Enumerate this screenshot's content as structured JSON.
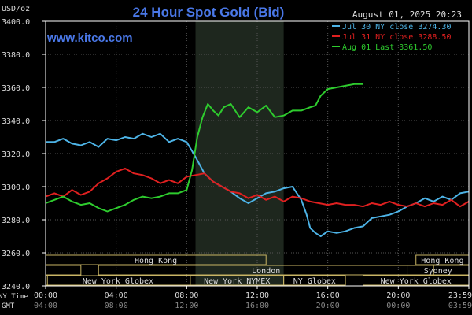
{
  "header": {
    "title": "24 Hour Spot Gold (Bid)",
    "units": "USD/oz",
    "datetime": "August 01, 2025 20:23",
    "site": "www.kitco.com"
  },
  "legend": [
    {
      "label": "Jul 30 NY close 3274.30",
      "color": "#4db3e6"
    },
    {
      "label": "Jul 31 NY close 3288.50",
      "color": "#e02020"
    },
    {
      "label": "Aug 01 Last 3361.50",
      "color": "#2ecc2e"
    }
  ],
  "axis": {
    "ny_time_label": "NY Time",
    "gmt_label": "GMT",
    "ny_ticks": [
      "00:00",
      "04:00",
      "08:00",
      "12:00",
      "16:00",
      "20:00",
      "23:59"
    ],
    "gmt_ticks": [
      "04:00",
      "08:00",
      "12:00",
      "16:00",
      "20:00",
      "00:00",
      "03:59"
    ],
    "y_ticks": [
      "3400.0",
      "3380.0",
      "3360.0",
      "3340.0",
      "3320.0",
      "3300.0",
      "3280.0",
      "3260.0",
      "3240.0"
    ]
  },
  "sessions": {
    "hong_kong": "Hong Kong",
    "london": "London",
    "ny_globex": "New York Globex",
    "ny_nymex": "New York NYMEX",
    "ny_globex_short": "NY Globex",
    "sydney": "Sydney"
  },
  "chart_data": {
    "type": "line",
    "title": "24 Hour Spot Gold (Bid)",
    "ylabel": "USD/oz",
    "xlabel": "NY Time",
    "xlim": [
      0,
      24
    ],
    "ylim": [
      3240,
      3400
    ],
    "x_ticks": [
      "00:00",
      "04:00",
      "08:00",
      "12:00",
      "16:00",
      "20:00",
      "23:59"
    ],
    "y_ticks": [
      3400,
      3380,
      3360,
      3340,
      3320,
      3300,
      3280,
      3260,
      3240
    ],
    "grid": true,
    "legend_position": "top-right",
    "shaded_region": [
      8.5,
      13.5
    ],
    "series": [
      {
        "name": "Jul 30 NY close 3274.30",
        "color": "#4db3e6",
        "x": [
          0,
          0.5,
          1,
          1.5,
          2,
          2.5,
          3,
          3.5,
          4,
          4.5,
          5,
          5.5,
          6,
          6.5,
          7,
          7.5,
          8,
          8.5,
          9,
          9.5,
          10,
          10.5,
          11,
          11.5,
          12,
          12.5,
          13,
          13.5,
          14,
          14.5,
          14.8,
          15,
          15.3,
          15.6,
          16,
          16.5,
          17,
          17.5,
          18,
          18.5,
          19,
          19.5,
          20,
          20.5,
          21,
          21.5,
          22,
          22.5,
          23,
          23.5,
          24
        ],
        "y": [
          3327,
          3327,
          3329,
          3326,
          3325,
          3327,
          3324,
          3329,
          3328,
          3330,
          3329,
          3332,
          3330,
          3332,
          3327,
          3329,
          3327,
          3318,
          3308,
          3303,
          3300,
          3297,
          3293,
          3290,
          3293,
          3296,
          3297,
          3299,
          3300,
          3292,
          3283,
          3275,
          3272,
          3270,
          3273,
          3272,
          3273,
          3275,
          3276,
          3281,
          3282,
          3283,
          3285,
          3288,
          3290,
          3293,
          3291,
          3294,
          3292,
          3296,
          3297
        ]
      },
      {
        "name": "Jul 31 NY close 3288.50",
        "color": "#e02020",
        "x": [
          0,
          0.5,
          1,
          1.5,
          2,
          2.5,
          3,
          3.5,
          4,
          4.5,
          5,
          5.5,
          6,
          6.5,
          7,
          7.5,
          8,
          8.5,
          9,
          9.5,
          10,
          10.5,
          11,
          11.5,
          12,
          12.5,
          13,
          13.5,
          14,
          14.5,
          15,
          15.5,
          16,
          16.5,
          17,
          17.5,
          18,
          18.5,
          19,
          19.5,
          20,
          20.5,
          21,
          21.5,
          22,
          22.5,
          23,
          23.5,
          24
        ],
        "y": [
          3294,
          3296,
          3294,
          3298,
          3295,
          3297,
          3302,
          3305,
          3309,
          3311,
          3308,
          3307,
          3305,
          3302,
          3304,
          3302,
          3306,
          3307,
          3308,
          3303,
          3300,
          3297,
          3296,
          3293,
          3295,
          3292,
          3294,
          3291,
          3294,
          3293,
          3291,
          3290,
          3289,
          3290,
          3289,
          3289,
          3288,
          3290,
          3289,
          3291,
          3289,
          3288,
          3290,
          3288,
          3290,
          3289,
          3292,
          3288,
          3291
        ]
      },
      {
        "name": "Aug 01 Last 3361.50",
        "color": "#2ecc2e",
        "x": [
          0,
          0.5,
          1,
          1.5,
          2,
          2.5,
          3,
          3.5,
          4,
          4.5,
          5,
          5.5,
          6,
          6.5,
          7,
          7.5,
          8,
          8.3,
          8.6,
          8.9,
          9.2,
          9.5,
          9.8,
          10.1,
          10.5,
          11,
          11.5,
          12,
          12.5,
          13,
          13.5,
          14,
          14.5,
          15,
          15.3,
          15.6,
          16,
          16.5,
          17,
          17.5,
          18
        ],
        "y": [
          3290,
          3292,
          3294,
          3291,
          3289,
          3290,
          3287,
          3285,
          3287,
          3289,
          3292,
          3294,
          3293,
          3294,
          3296,
          3296,
          3298,
          3310,
          3330,
          3342,
          3350,
          3346,
          3343,
          3348,
          3350,
          3342,
          3348,
          3345,
          3349,
          3342,
          3343,
          3346,
          3346,
          3348,
          3349,
          3355,
          3359,
          3360,
          3361,
          3362,
          3362
        ]
      }
    ]
  }
}
